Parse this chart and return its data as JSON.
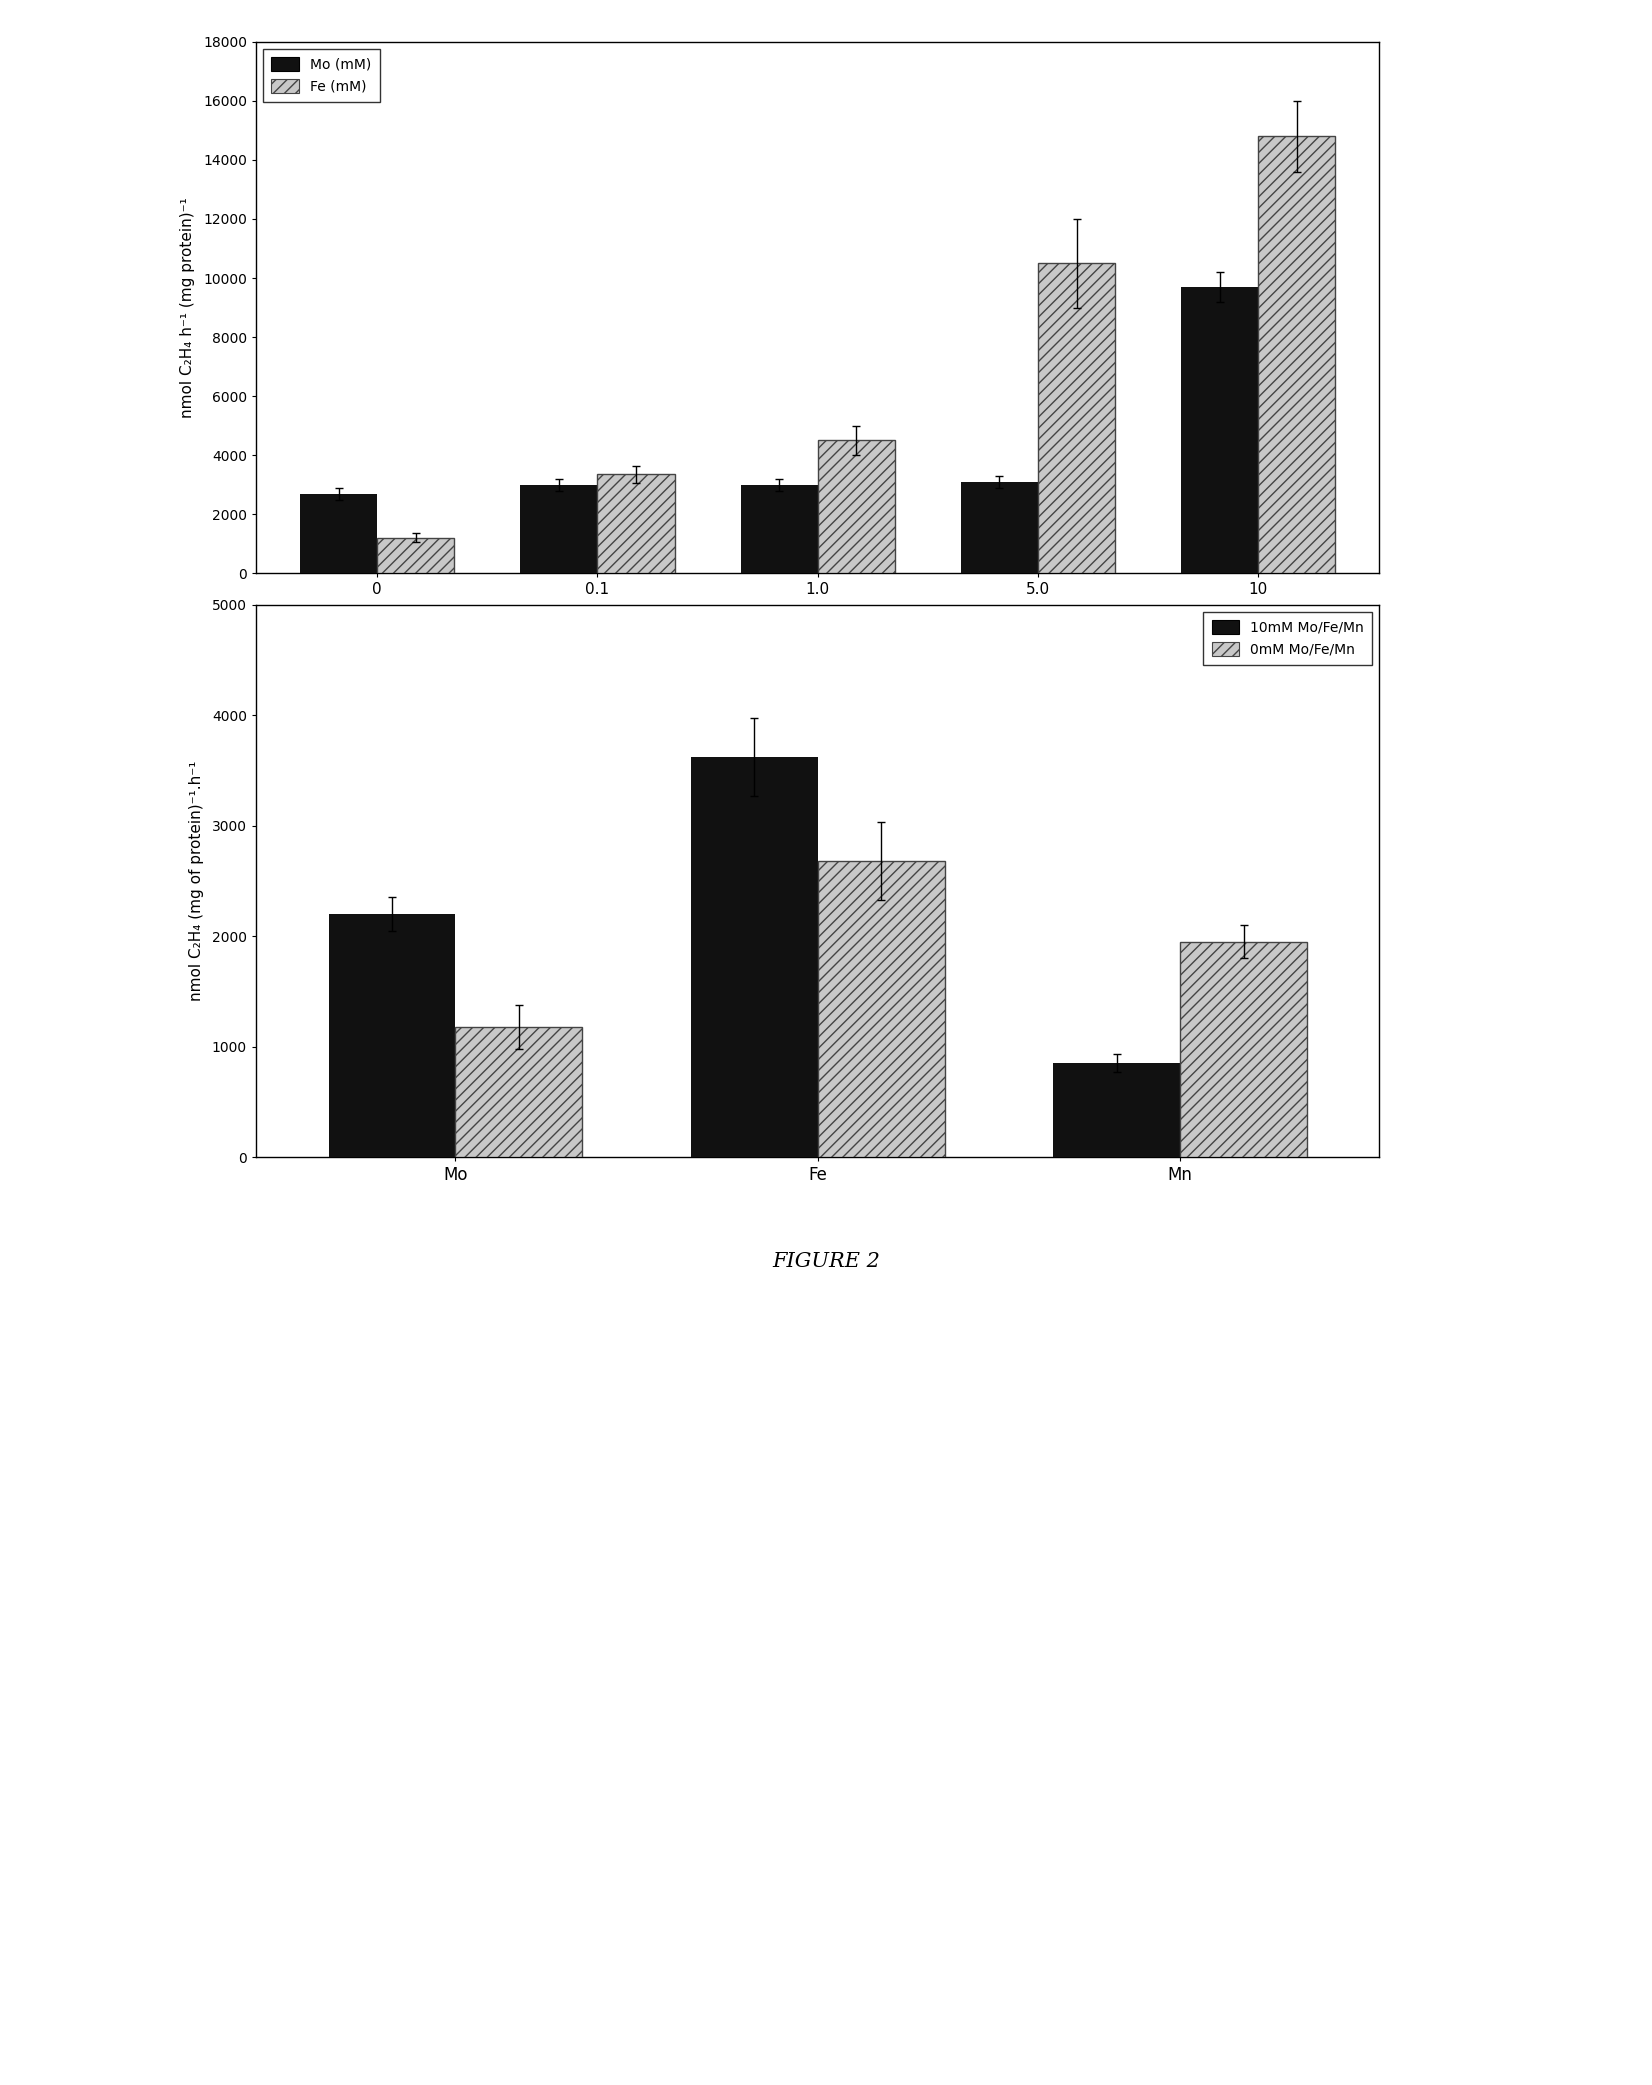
{
  "top_chart": {
    "categories": [
      "0",
      "0.1",
      "1.0",
      "5.0",
      "10"
    ],
    "mo_values": [
      2700,
      3000,
      3000,
      3100,
      9700
    ],
    "fe_values": [
      1200,
      3350,
      4500,
      10500,
      14800
    ],
    "mo_errors": [
      200,
      200,
      200,
      200,
      500
    ],
    "fe_errors": [
      150,
      300,
      500,
      1500,
      1200
    ],
    "ylim": [
      0,
      18000
    ],
    "yticks": [
      0,
      2000,
      4000,
      6000,
      8000,
      10000,
      12000,
      14000,
      16000,
      18000
    ],
    "ylabel": "nmol C₂H₄ h⁻¹ (mg protein)⁻¹",
    "legend_labels": [
      "Mo (mM)",
      "Fe (mM)"
    ],
    "bar_width": 0.35
  },
  "bottom_chart": {
    "categories": [
      "Mo",
      "Fe",
      "Mn"
    ],
    "val_10mm": [
      2200,
      3620,
      850
    ],
    "val_0mm": [
      1180,
      2680,
      1950
    ],
    "err_10mm": [
      150,
      350,
      80
    ],
    "err_0mm": [
      200,
      350,
      150
    ],
    "ylim": [
      0,
      5000
    ],
    "yticks": [
      0,
      1000,
      2000,
      3000,
      4000,
      5000
    ],
    "ylabel": "nmol C₂H₄ (mg of protein)⁻¹.h⁻¹",
    "legend_labels": [
      "10mM Mo/Fe/Mn",
      "0mM Mo/Fe/Mn"
    ],
    "bar_width": 0.35
  },
  "figure_label": "FIGURE 2",
  "bar_color_dark": "#111111",
  "bar_color_light": "#c8c8c8",
  "bar_edgecolor_light": "#444444",
  "background_color": "#ffffff"
}
